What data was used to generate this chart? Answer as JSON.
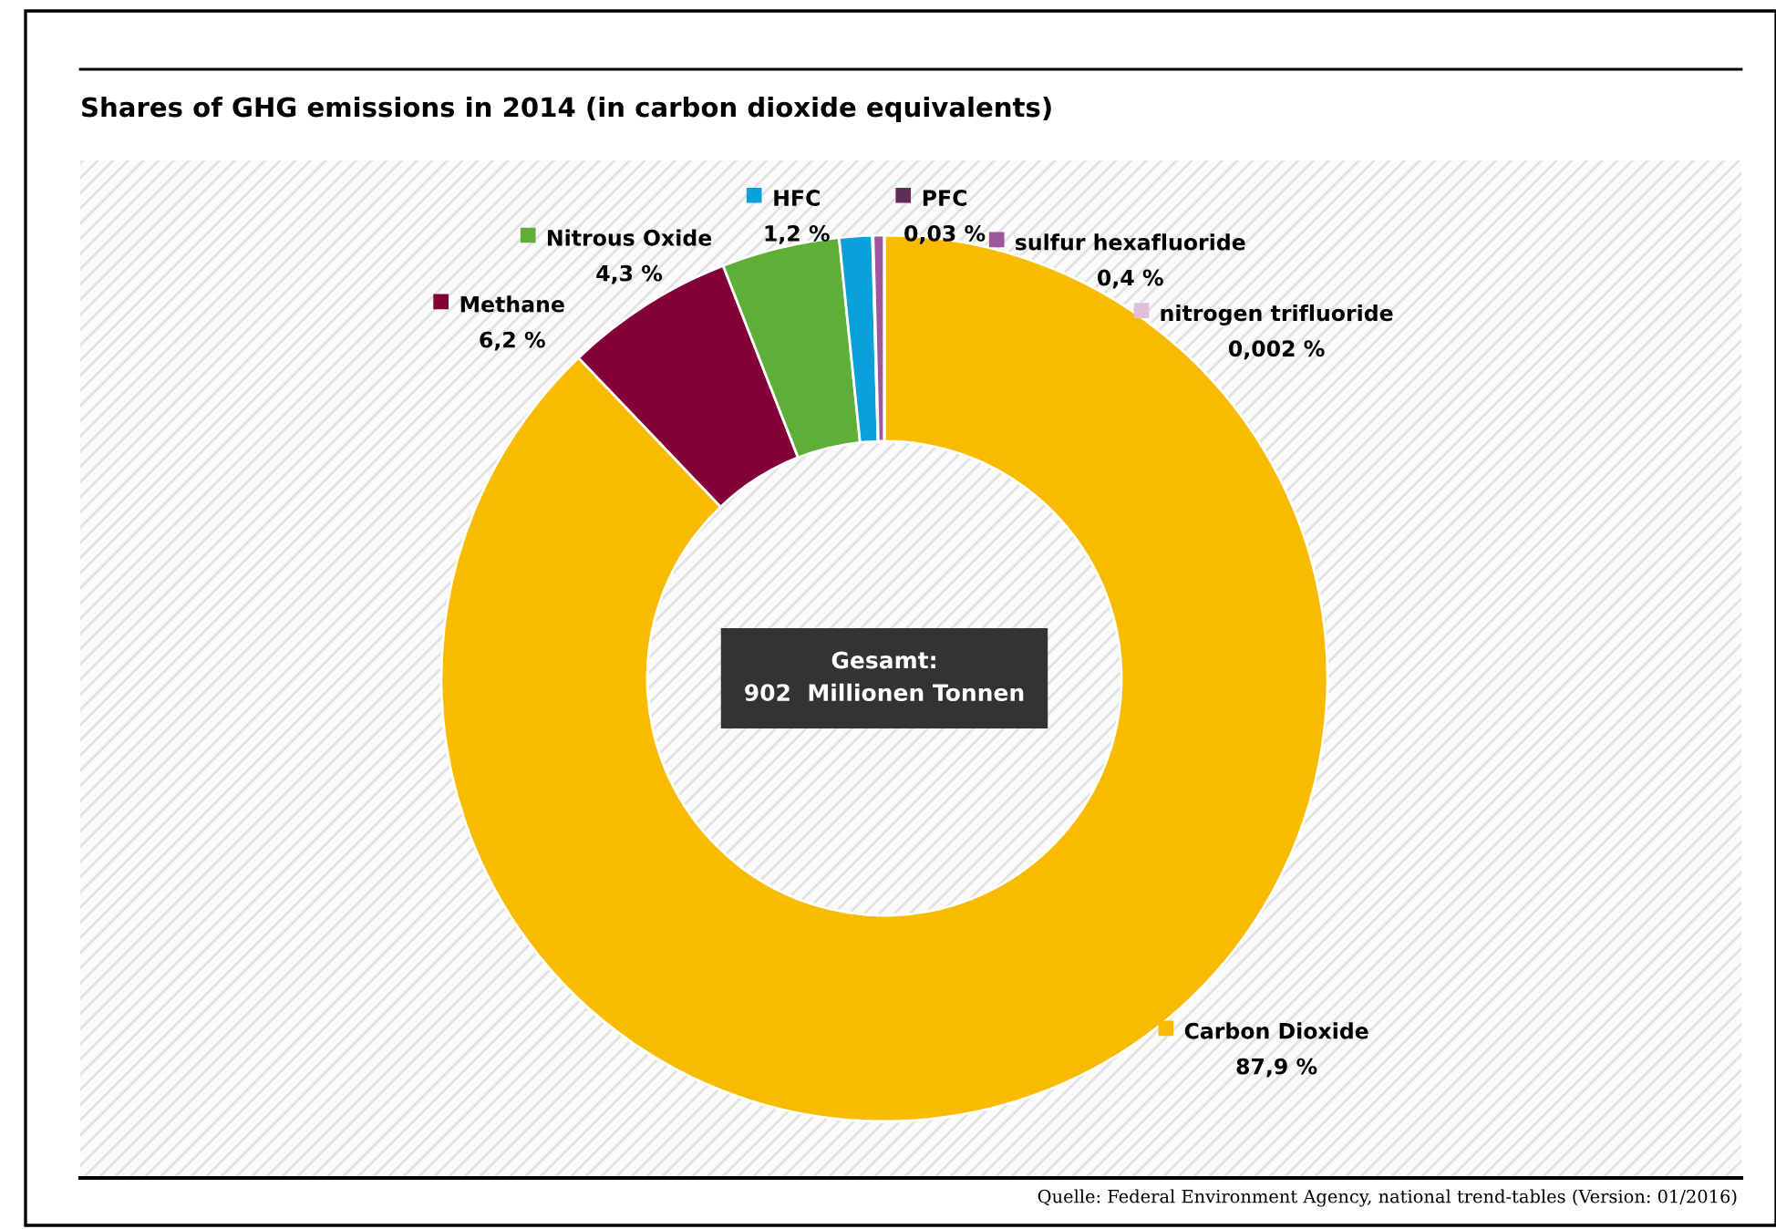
{
  "chart_data": {
    "type": "donut",
    "title": "Shares of GHG emissions in 2014 (in carbon dioxide equivalents)",
    "categories": [
      "Carbon Dioxide",
      "Methane",
      "Nitrous Oxide",
      "HFC",
      "PFC",
      "sulfur hexafluoride",
      "nitrogen trifluoride"
    ],
    "values": [
      87.9,
      6.2,
      4.3,
      1.2,
      0.03,
      0.4,
      0.002
    ],
    "value_labels": [
      "87,9 %",
      "6,2 %",
      "4,3 %",
      "1,2 %",
      "0,03 %",
      "0,4 %",
      "0,002 %"
    ],
    "colors": [
      "#f9bb00",
      "#830039",
      "#5eae38",
      "#0aa0dc",
      "#622c5a",
      "#9d579a",
      "#e2bedb"
    ],
    "annotations": [
      "Gesamt:\n902  Millionen Tonnen",
      "Quelle: Federal Environment Agency, national trend-tables (Version: 01/2016)"
    ],
    "legend": "top"
  }
}
